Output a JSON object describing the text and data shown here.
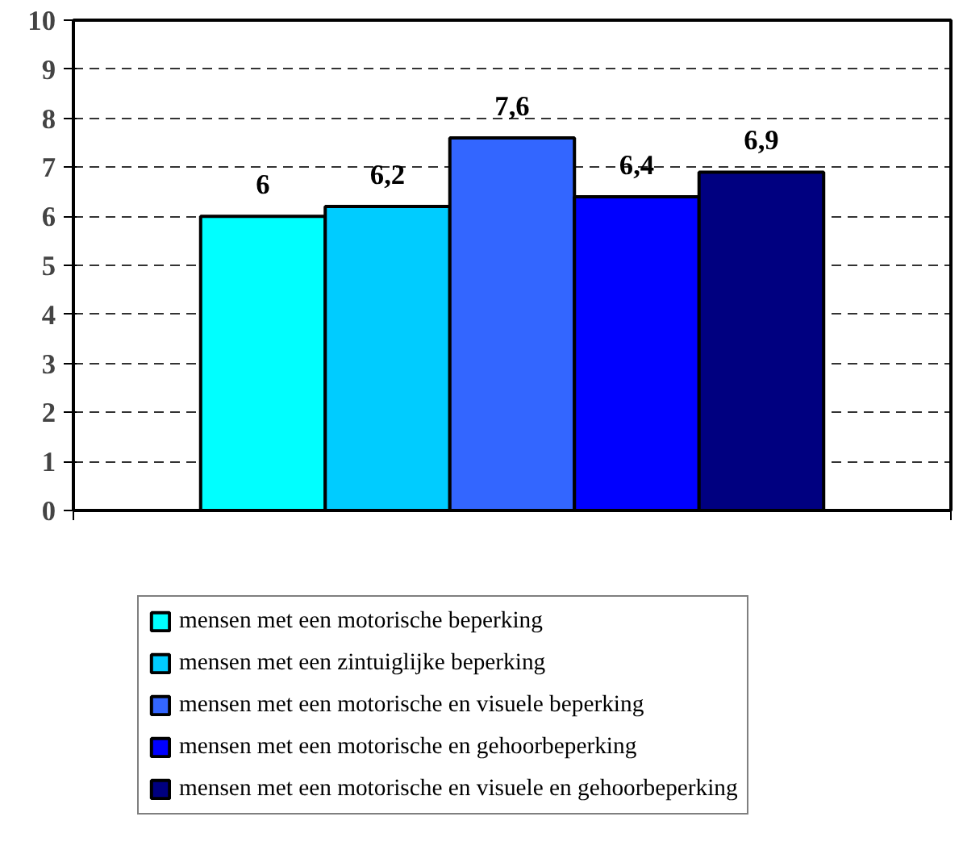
{
  "chart_data": {
    "type": "bar",
    "categories": [
      null
    ],
    "series": [
      {
        "name": "mensen met een motorische beperking",
        "color": "#00ffff",
        "values": [
          6
        ],
        "value_labels": [
          "6"
        ]
      },
      {
        "name": "mensen met een zintuiglijke beperking",
        "color": "#00ccff",
        "values": [
          6.2
        ],
        "value_labels": [
          "6,2"
        ]
      },
      {
        "name": "mensen met een motorische en visuele beperking",
        "color": "#3366ff",
        "values": [
          7.6
        ],
        "value_labels": [
          "7,6"
        ]
      },
      {
        "name": "mensen met een motorische en gehoorbeperking",
        "color": "#0000ff",
        "values": [
          6.4
        ],
        "value_labels": [
          "6,4"
        ]
      },
      {
        "name": "mensen met een motorische en visuele en gehoorbeperking",
        "color": "#000080",
        "values": [
          6.9
        ],
        "value_labels": [
          "6,9"
        ]
      }
    ],
    "ylim": [
      0,
      10
    ],
    "yticks": [
      0,
      1,
      2,
      3,
      4,
      5,
      6,
      7,
      8,
      9,
      10
    ],
    "grid": "y",
    "legend": "bottom"
  }
}
